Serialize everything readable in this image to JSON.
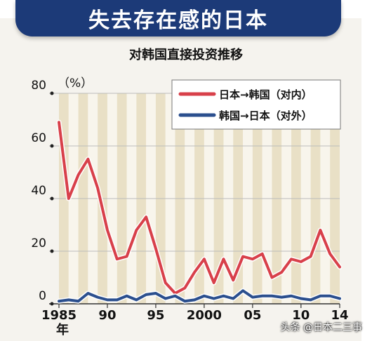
{
  "header": {
    "banner_title": "失去存在感的日本"
  },
  "chart_data": {
    "type": "line",
    "title": "对韩国直接投资推移",
    "yunit": "（%）",
    "ylim": [
      0,
      80
    ],
    "yticks": [
      0,
      20,
      40,
      60,
      80
    ],
    "xlim": [
      1985,
      2014
    ],
    "xticks": [
      {
        "value": 1985,
        "label": "1985"
      },
      {
        "value": 1990,
        "label": "90"
      },
      {
        "value": 1995,
        "label": "95"
      },
      {
        "value": 2000,
        "label": "2000"
      },
      {
        "value": 2005,
        "label": "05"
      },
      {
        "value": 2010,
        "label": "10"
      },
      {
        "value": 2014,
        "label": "14"
      }
    ],
    "xsuffix": "年",
    "grid": "vertical-stripes",
    "legend_position": "top-right",
    "series": [
      {
        "name": "日本→韩国（对内）",
        "color": "#d8404a",
        "x": [
          1985,
          1986,
          1987,
          1988,
          1989,
          1990,
          1991,
          1992,
          1993,
          1994,
          1995,
          1996,
          1997,
          1998,
          1999,
          2000,
          2001,
          2002,
          2003,
          2004,
          2005,
          2006,
          2007,
          2008,
          2009,
          2010,
          2011,
          2012,
          2013,
          2014
        ],
        "y": [
          69,
          40,
          49,
          55,
          44,
          28,
          17,
          18,
          28,
          33,
          21,
          8,
          4,
          6,
          12,
          17,
          8,
          17,
          9,
          18,
          17,
          19,
          10,
          12,
          17,
          16,
          18,
          28,
          19,
          14
        ]
      },
      {
        "name": "韩国→日本（对外）",
        "color": "#2b4f8e",
        "x": [
          1985,
          1986,
          1987,
          1988,
          1989,
          1990,
          1991,
          1992,
          1993,
          1994,
          1995,
          1996,
          1997,
          1998,
          1999,
          2000,
          2001,
          2002,
          2003,
          2004,
          2005,
          2006,
          2007,
          2008,
          2009,
          2010,
          2011,
          2012,
          2013,
          2014
        ],
        "y": [
          1,
          1.5,
          1,
          4,
          2.5,
          1.5,
          1.5,
          3,
          1.5,
          3.5,
          4,
          2,
          3,
          1,
          1.5,
          3,
          2,
          3,
          2,
          5,
          2.5,
          3,
          3,
          2.5,
          3,
          2,
          1.5,
          3,
          3,
          2
        ]
      }
    ]
  },
  "footer": {
    "watermark": "头条 @日本二三事"
  }
}
